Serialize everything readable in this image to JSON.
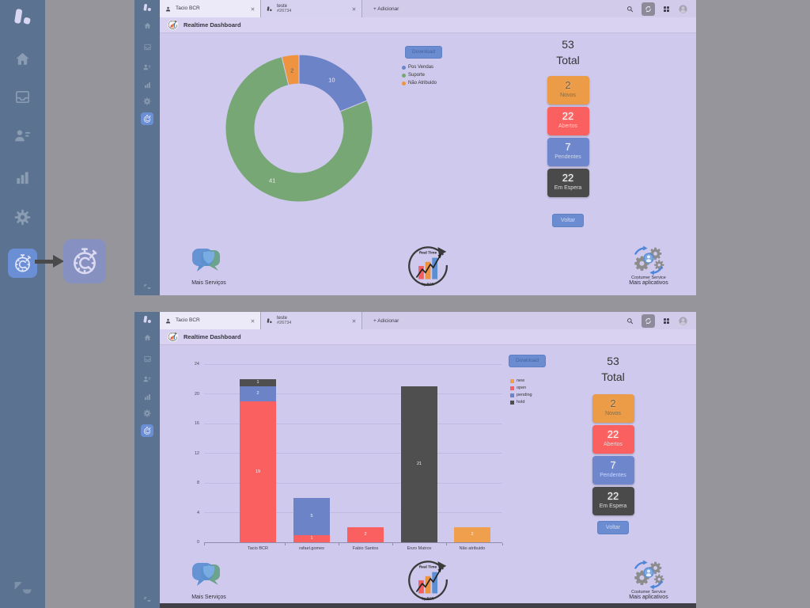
{
  "colors": {
    "canvas_bg": "#97959c",
    "sidebar_bg": "#5b7391",
    "panel_bg": "#cfc9ed",
    "accent_blue": "#6b8fd4",
    "button_blue": "#6b8cd0"
  },
  "sidebar": {
    "icons": [
      "app-logo",
      "home",
      "inbox",
      "contacts",
      "reports",
      "settings",
      "realtime-stopwatch",
      "zendesk"
    ],
    "highlighted": "realtime-stopwatch"
  },
  "browser": {
    "tabs": [
      {
        "label": "Tacio BCR"
      },
      {
        "label": "teste",
        "sub": "#26734"
      }
    ],
    "add_label": "+ Adicionar",
    "action_icons": [
      "search",
      "sync",
      "apps-grid",
      "profile"
    ]
  },
  "header": {
    "title": "Realtime Dashboard"
  },
  "toolbar": {
    "download_label": "Download"
  },
  "summary": {
    "total_value": "53",
    "total_label": "Total",
    "badges": [
      {
        "value": "2",
        "label": "Novos",
        "color": "#ec9b47",
        "value_color": "#6f6248",
        "label_color": "#7d6f4e"
      },
      {
        "value": "22",
        "label": "Abertos",
        "color": "#fa6060",
        "value_color": "#ffffff",
        "label_color": "#f7cfcf"
      },
      {
        "value": "7",
        "label": "Pendentes",
        "color": "#6d86cc",
        "value_color": "#eef1fb",
        "label_color": "#cdd8f4"
      },
      {
        "value": "22",
        "label": "Em Espera",
        "color": "#4a4a4a",
        "value_color": "#ffffff",
        "label_color": "#dddddd"
      }
    ],
    "back_label": "Voltar"
  },
  "footer": {
    "services_label": "Mais Serviços",
    "apps_title": "Costumer Service",
    "apps_label": "Mais aplicativos",
    "badge_logo_top": "Real Time",
    "badge_logo_bottom": "by BCR"
  },
  "chart_data": [
    {
      "panel": "top",
      "type": "pie",
      "donut": true,
      "labels": [
        "Pos Vendas",
        "Suporte",
        "Não Atribuido"
      ],
      "values": [
        10,
        41,
        2
      ],
      "colors": [
        "#6d83c8",
        "#76a775",
        "#ee9440"
      ],
      "label_colors": [
        "#f2f0f6",
        "#e9efe9",
        "#5a5a5a"
      ],
      "total": 53,
      "legend_position": "right",
      "start_angle_deg": 0,
      "direction": "clockwise"
    },
    {
      "panel": "bottom",
      "type": "bar",
      "stacked": true,
      "categories": [
        "Tacio BCR",
        "rafael.gomes",
        "Fabio Santos",
        "Enzo Matrov",
        "Não atribuido"
      ],
      "series": [
        {
          "name": "new",
          "color": "#f0a04c",
          "values": [
            0,
            0,
            0,
            0,
            2
          ]
        },
        {
          "name": "open",
          "color": "#fa6060",
          "values": [
            19,
            1,
            2,
            0,
            0
          ]
        },
        {
          "name": "pending",
          "color": "#6d83c8",
          "values": [
            2,
            5,
            0,
            0,
            0
          ]
        },
        {
          "name": "hold",
          "color": "#4f4f4f",
          "values": [
            1,
            0,
            0,
            21,
            0
          ]
        }
      ],
      "ylim": [
        0,
        24
      ],
      "yticks": [
        0,
        4,
        8,
        12,
        16,
        20,
        24
      ],
      "grid": true,
      "legend_position": "right"
    }
  ]
}
